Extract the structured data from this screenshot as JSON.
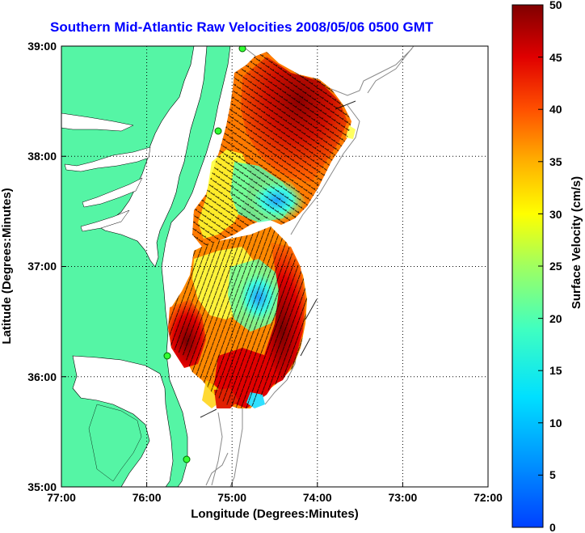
{
  "title": "Southern Mid-Atlantic Raw Velocities 2008/05/06 0500 GMT",
  "map": {
    "xlabel": "Longitude (Degrees:Minutes)",
    "ylabel": "Latitude (Degrees:Minutes)",
    "x_ticks": [
      "77:00",
      "76:00",
      "75:00",
      "74:00",
      "73:00",
      "72:00"
    ],
    "y_ticks": [
      "39:00",
      "38:00",
      "37:00",
      "36:00",
      "35:00"
    ],
    "lon_range": [
      -77,
      -72
    ],
    "lat_range": [
      35,
      39
    ],
    "land_color": "#55f5a5",
    "ocean_color": "#ffffff",
    "grid": "dotted",
    "stations": [
      "coastal-radar-site-1",
      "coastal-radar-site-2",
      "coastal-radar-site-3",
      "coastal-radar-site-4"
    ]
  },
  "colorbar": {
    "label": "Surface Velocity (cm/s)",
    "ticks": [
      "0",
      "5",
      "10",
      "15",
      "20",
      "25",
      "30",
      "35",
      "40",
      "45",
      "50"
    ],
    "range": [
      0,
      50
    ],
    "colormap": "jet",
    "position": "right"
  }
}
